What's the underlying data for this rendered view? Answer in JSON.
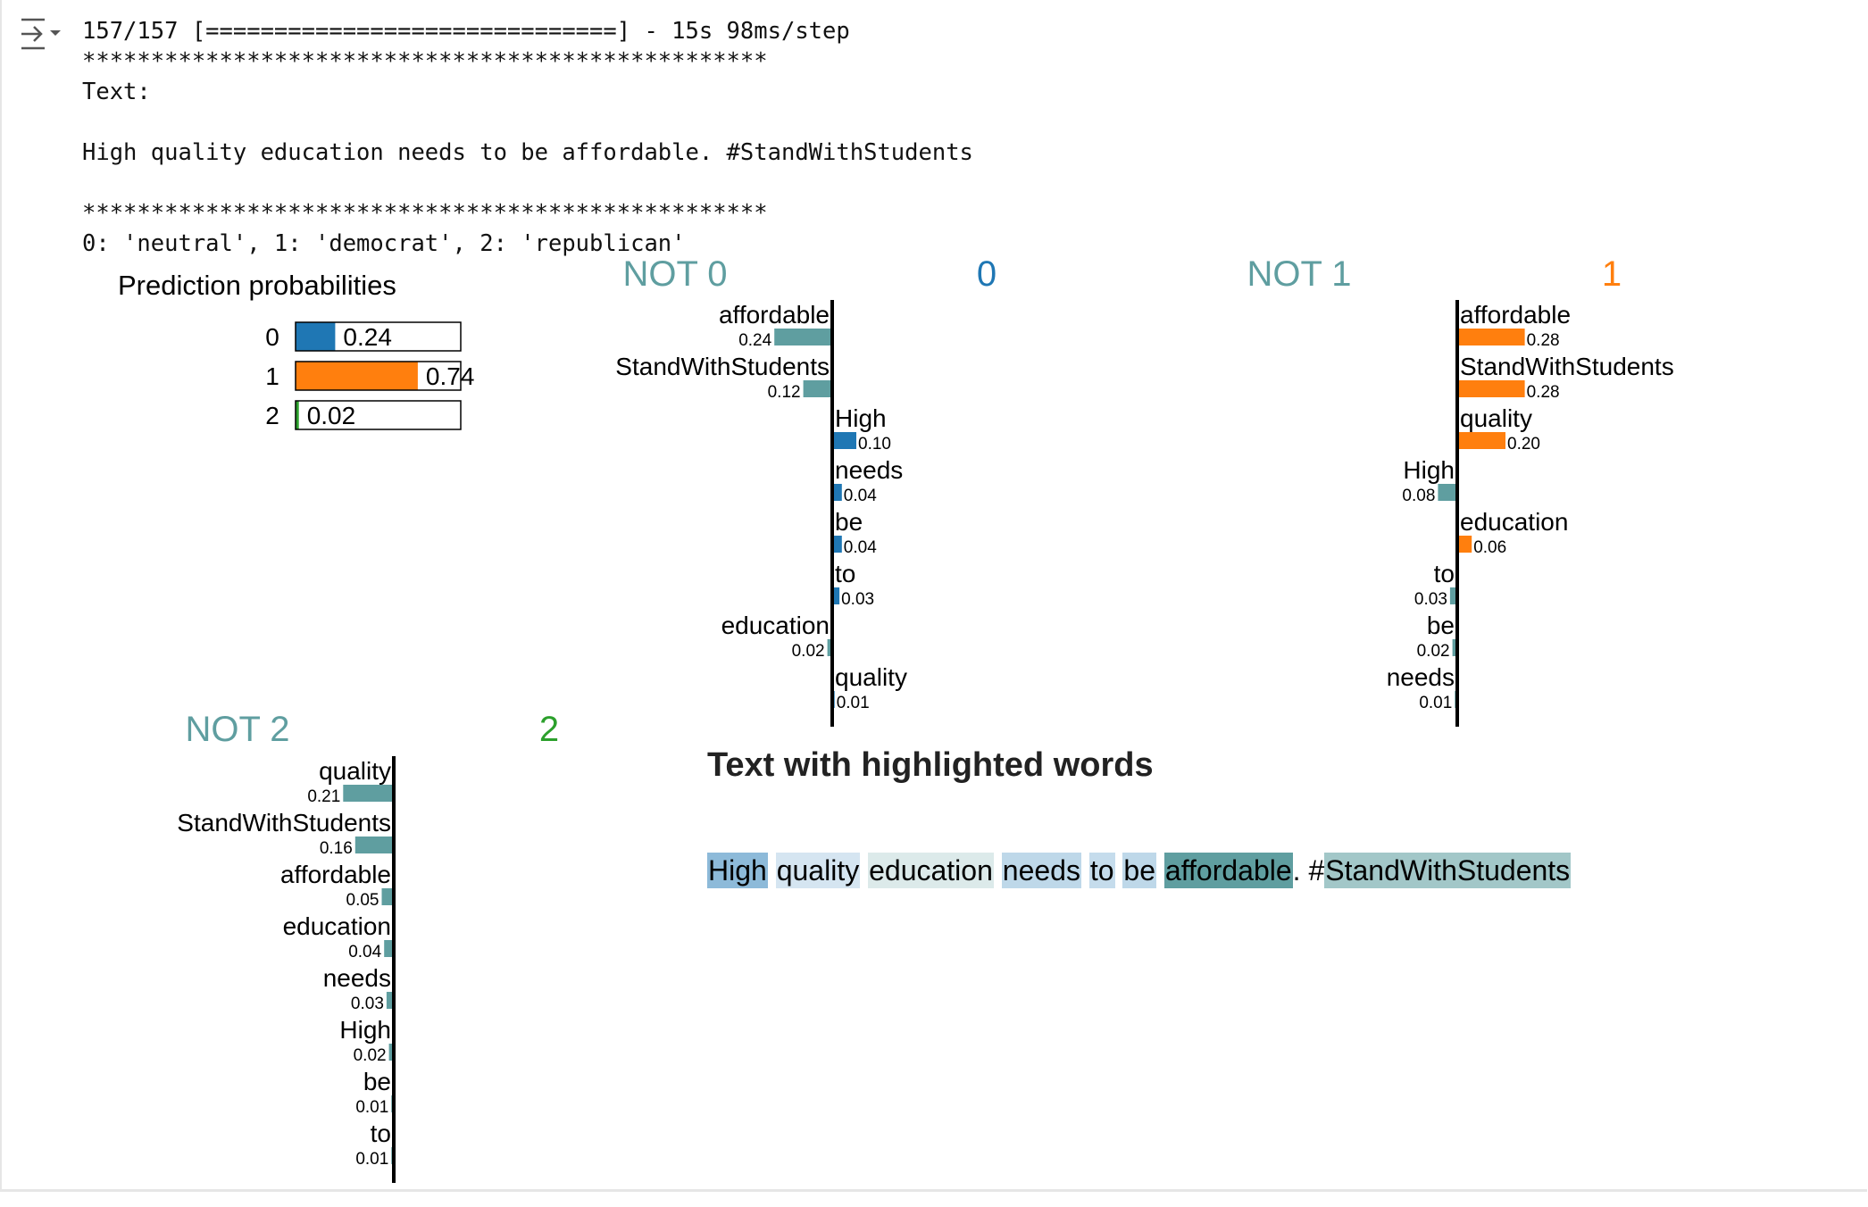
{
  "console": {
    "progress_line": "157/157 [==============================] - 15s 98ms/step",
    "separator": "**************************************************",
    "text_label": "Text:",
    "text_value": "High quality education needs to be affordable. #StandWithStudents",
    "separator2": "**************************************************",
    "class_map": "0: 'neutral', 1: 'democrat', 2: 'republican'"
  },
  "colors": {
    "class0": "#1f77b4",
    "class1": "#ff7f0e",
    "class2": "#2ca02c",
    "not_bar": "#5f9ea0",
    "axis": "#000000"
  },
  "chart_data": [
    {
      "id": "prediction-probabilities",
      "type": "bar",
      "title": "Prediction probabilities",
      "categories": [
        "0",
        "1",
        "2"
      ],
      "values": [
        0.24,
        0.74,
        0.02
      ],
      "value_labels": [
        "0.24",
        "0.74",
        "0.02"
      ],
      "colors": [
        "#1f77b4",
        "#ff7f0e",
        "#2ca02c"
      ]
    },
    {
      "id": "explanation-class-0",
      "type": "bar",
      "not_label": "NOT 0",
      "class_label": "0",
      "class_color": "#1f77b4",
      "features": [
        {
          "word": "affordable",
          "value": -0.24,
          "label": "0.24"
        },
        {
          "word": "StandWithStudents",
          "value": -0.12,
          "label": "0.12"
        },
        {
          "word": "High",
          "value": 0.1,
          "label": "0.10"
        },
        {
          "word": "needs",
          "value": 0.04,
          "label": "0.04"
        },
        {
          "word": "be",
          "value": 0.04,
          "label": "0.04"
        },
        {
          "word": "to",
          "value": 0.03,
          "label": "0.03"
        },
        {
          "word": "education",
          "value": -0.02,
          "label": "0.02"
        },
        {
          "word": "quality",
          "value": 0.01,
          "label": "0.01"
        }
      ]
    },
    {
      "id": "explanation-class-1",
      "type": "bar",
      "not_label": "NOT 1",
      "class_label": "1",
      "class_color": "#ff7f0e",
      "features": [
        {
          "word": "affordable",
          "value": 0.28,
          "label": "0.28"
        },
        {
          "word": "StandWithStudents",
          "value": 0.28,
          "label": "0.28"
        },
        {
          "word": "quality",
          "value": 0.2,
          "label": "0.20"
        },
        {
          "word": "High",
          "value": -0.08,
          "label": "0.08"
        },
        {
          "word": "education",
          "value": 0.06,
          "label": "0.06"
        },
        {
          "word": "to",
          "value": -0.03,
          "label": "0.03"
        },
        {
          "word": "be",
          "value": -0.02,
          "label": "0.02"
        },
        {
          "word": "needs",
          "value": -0.01,
          "label": "0.01"
        }
      ]
    },
    {
      "id": "explanation-class-2",
      "type": "bar",
      "not_label": "NOT 2",
      "class_label": "2",
      "class_color": "#2ca02c",
      "features": [
        {
          "word": "quality",
          "value": -0.21,
          "label": "0.21"
        },
        {
          "word": "StandWithStudents",
          "value": -0.16,
          "label": "0.16"
        },
        {
          "word": "affordable",
          "value": -0.05,
          "label": "0.05"
        },
        {
          "word": "education",
          "value": -0.04,
          "label": "0.04"
        },
        {
          "word": "needs",
          "value": -0.03,
          "label": "0.03"
        },
        {
          "word": "High",
          "value": -0.02,
          "label": "0.02"
        },
        {
          "word": "be",
          "value": -0.01,
          "label": "0.01"
        },
        {
          "word": "to",
          "value": -0.01,
          "label": "0.01"
        }
      ]
    }
  ],
  "highlighted": {
    "heading": "Text with highlighted words",
    "tokens": [
      {
        "text": "High",
        "weight": 0.1,
        "color": "#1f77b4"
      },
      {
        "text": " ",
        "weight": 0
      },
      {
        "text": "quality",
        "weight": 0.01,
        "color": "#1f77b4"
      },
      {
        "text": " ",
        "weight": 0
      },
      {
        "text": "education",
        "weight": 0.02,
        "color": "#5f9ea0"
      },
      {
        "text": " ",
        "weight": 0
      },
      {
        "text": "needs",
        "weight": 0.04,
        "color": "#1f77b4"
      },
      {
        "text": " ",
        "weight": 0
      },
      {
        "text": "to",
        "weight": 0.03,
        "color": "#1f77b4"
      },
      {
        "text": " ",
        "weight": 0
      },
      {
        "text": "be",
        "weight": 0.04,
        "color": "#1f77b4"
      },
      {
        "text": " ",
        "weight": 0
      },
      {
        "text": "affordable",
        "weight": 0.24,
        "color": "#5f9ea0"
      },
      {
        "text": ". #",
        "weight": 0
      },
      {
        "text": "StandWithStudents",
        "weight": 0.12,
        "color": "#5f9ea0"
      }
    ]
  }
}
